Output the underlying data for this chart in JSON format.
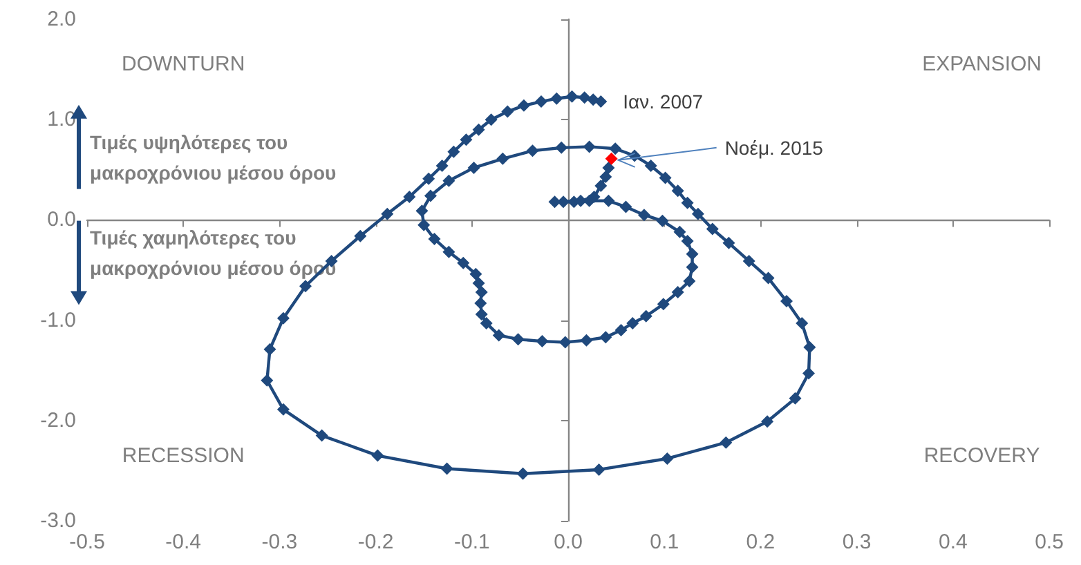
{
  "chart_data": {
    "type": "line",
    "marker": "diamond",
    "line_style": "solid",
    "xlim": [
      -0.5,
      0.5
    ],
    "xticks": [
      {
        "value": -0.5,
        "label": "-0.5"
      },
      {
        "value": -0.4,
        "label": "-0.4"
      },
      {
        "value": -0.3,
        "label": "-0.3"
      },
      {
        "value": -0.2,
        "label": "-0.2"
      },
      {
        "value": -0.1,
        "label": "-0.1"
      },
      {
        "value": 0,
        "label": "0.0"
      },
      {
        "value": 0.1,
        "label": "0.1"
      },
      {
        "value": 0.2,
        "label": "0.2"
      },
      {
        "value": 0.3,
        "label": "0.3"
      },
      {
        "value": 0.4,
        "label": "0.4"
      },
      {
        "value": 0.5,
        "label": "0.5"
      }
    ],
    "ylim": [
      -3,
      2
    ],
    "yticks": [
      {
        "value": -3,
        "label": "-3.0"
      },
      {
        "value": -2,
        "label": "-2.0"
      },
      {
        "value": -1,
        "label": "-1.0"
      },
      {
        "value": 0,
        "label": "0.0"
      },
      {
        "value": 1,
        "label": "1.0"
      },
      {
        "value": 2,
        "label": "2.0"
      }
    ],
    "series": [
      {
        "color": "#1f497d",
        "x": [
          0.034,
          0.026,
          0.017,
          0.004,
          -0.012,
          -0.028,
          -0.046,
          -0.063,
          -0.08,
          -0.093,
          -0.106,
          -0.119,
          -0.131,
          -0.145,
          -0.165,
          -0.188,
          -0.216,
          -0.246,
          -0.273,
          -0.296,
          -0.31,
          -0.313,
          -0.296,
          -0.256,
          -0.198,
          -0.126,
          -0.047,
          0.032,
          0.103,
          0.164,
          0.207,
          0.236,
          0.25,
          0.251,
          0.243,
          0.227,
          0.208,
          0.188,
          0.167,
          0.15,
          0.135,
          0.124,
          0.114,
          0.101,
          0.086,
          0.069,
          0.049,
          0.022,
          -0.007,
          -0.037,
          -0.068,
          -0.098,
          -0.124,
          -0.143,
          -0.152,
          -0.15,
          -0.139,
          -0.124,
          -0.109,
          -0.096,
          -0.093,
          -0.09,
          -0.091,
          -0.09,
          -0.085,
          -0.072,
          -0.052,
          -0.027,
          -0.003,
          0.019,
          0.039,
          0.055,
          0.067,
          0.081,
          0.099,
          0.114,
          0.126,
          0.129,
          0.129,
          0.124,
          0.116,
          0.098,
          0.079,
          0.06,
          0.042,
          0.022,
          0.006,
          -0.005,
          -0.014,
          0.013,
          0.027,
          0.034,
          0.039,
          0.042,
          0.045
        ],
        "values": [
          1.18,
          1.2,
          1.22,
          1.23,
          1.21,
          1.18,
          1.14,
          1.08,
          1.0,
          0.9,
          0.8,
          0.68,
          0.54,
          0.41,
          0.23,
          0.06,
          -0.16,
          -0.41,
          -0.66,
          -0.98,
          -1.29,
          -1.6,
          -1.89,
          -2.15,
          -2.35,
          -2.48,
          -2.53,
          -2.49,
          -2.38,
          -2.22,
          -2.01,
          -1.78,
          -1.53,
          -1.27,
          -1.03,
          -0.81,
          -0.58,
          -0.41,
          -0.23,
          -0.09,
          0.06,
          0.17,
          0.29,
          0.42,
          0.54,
          0.64,
          0.71,
          0.73,
          0.72,
          0.69,
          0.61,
          0.52,
          0.39,
          0.24,
          0.09,
          -0.05,
          -0.19,
          -0.32,
          -0.43,
          -0.54,
          -0.63,
          -0.72,
          -0.83,
          -0.94,
          -1.03,
          -1.15,
          -1.19,
          -1.21,
          -1.22,
          -1.2,
          -1.17,
          -1.1,
          -1.03,
          -0.96,
          -0.84,
          -0.72,
          -0.61,
          -0.47,
          -0.34,
          -0.21,
          -0.12,
          -0.01,
          0.05,
          0.13,
          0.19,
          0.19,
          0.18,
          0.18,
          0.18,
          0.19,
          0.23,
          0.34,
          0.43,
          0.52,
          0.61
        ],
        "colors": [
          "#1f497d",
          "#1f497d",
          "#1f497d",
          "#1f497d",
          "#1f497d",
          "#1f497d",
          "#1f497d",
          "#1f497d",
          "#1f497d",
          "#1f497d",
          "#1f497d",
          "#1f497d",
          "#1f497d",
          "#1f497d",
          "#1f497d",
          "#1f497d",
          "#1f497d",
          "#1f497d",
          "#1f497d",
          "#1f497d",
          "#1f497d",
          "#1f497d",
          "#1f497d",
          "#1f497d",
          "#1f497d",
          "#1f497d",
          "#1f497d",
          "#1f497d",
          "#1f497d",
          "#1f497d",
          "#1f497d",
          "#1f497d",
          "#1f497d",
          "#1f497d",
          "#1f497d",
          "#1f497d",
          "#1f497d",
          "#1f497d",
          "#1f497d",
          "#1f497d",
          "#1f497d",
          "#1f497d",
          "#1f497d",
          "#1f497d",
          "#1f497d",
          "#1f497d",
          "#1f497d",
          "#1f497d",
          "#1f497d",
          "#1f497d",
          "#1f497d",
          "#1f497d",
          "#1f497d",
          "#1f497d",
          "#1f497d",
          "#1f497d",
          "#1f497d",
          "#1f497d",
          "#1f497d",
          "#1f497d",
          "#1f497d",
          "#1f497d",
          "#1f497d",
          "#1f497d",
          "#1f497d",
          "#1f497d",
          "#1f497d",
          "#1f497d",
          "#1f497d",
          "#1f497d",
          "#1f497d",
          "#1f497d",
          "#1f497d",
          "#1f497d",
          "#1f497d",
          "#1f497d",
          "#1f497d",
          "#1f497d",
          "#1f497d",
          "#1f497d",
          "#1f497d",
          "#1f497d",
          "#1f497d",
          "#1f497d",
          "#1f497d",
          "#1f497d",
          "#1f497d",
          "#1f497d",
          "#1f497d",
          "#1f497d",
          "#1f497d",
          "#1f497d",
          "#1f497d",
          "#1f497d",
          "#ff0000"
        ]
      }
    ],
    "annotations": [
      "DOWNTURN",
      "EXPANSION",
      "RECESSION",
      "RECOVERY",
      "Τιμές υψηλότερες του\nμακροχρόνιου μέσου όρου",
      "Τιμές χαμηλότερες του\nμακροχρόνιου μέσου όρου",
      {
        "text": "Ιαν. 2007",
        "x": 0.034,
        "y": 1.18
      },
      {
        "text": "Νοέμ. 2015",
        "x": 0.045,
        "y": 0.61
      }
    ]
  }
}
